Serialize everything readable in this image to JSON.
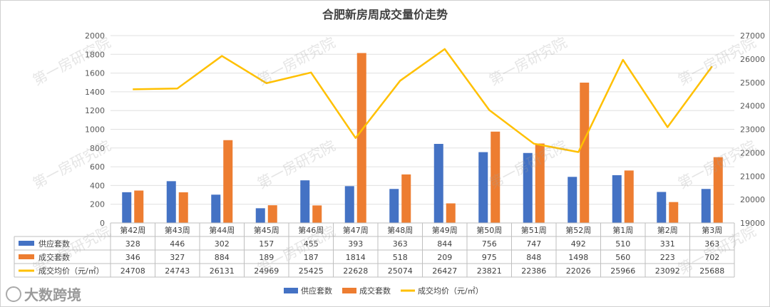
{
  "chart_data": {
    "type": "bar",
    "title": "合肥新房周成交量价走势",
    "categories": [
      "第42周",
      "第43周",
      "第44周",
      "第45周",
      "第46周",
      "第47周",
      "第48周",
      "第49周",
      "第50周",
      "第51周",
      "第52周",
      "第1周",
      "第2周",
      "第3周"
    ],
    "series": [
      {
        "name": "供应套数",
        "type": "bar",
        "axis": "left",
        "color": "#4472c4",
        "values": [
          328,
          446,
          302,
          157,
          455,
          393,
          363,
          844,
          756,
          747,
          492,
          510,
          331,
          363
        ]
      },
      {
        "name": "成交套数",
        "type": "bar",
        "axis": "left",
        "color": "#ed7d31",
        "values": [
          346,
          327,
          884,
          189,
          187,
          1814,
          518,
          209,
          975,
          848,
          1498,
          560,
          223,
          702
        ]
      },
      {
        "name": "成交均价（元/㎡）",
        "type": "line",
        "axis": "right",
        "color": "#ffc000",
        "values": [
          24708,
          24743,
          26131,
          24969,
          25425,
          22628,
          25074,
          26427,
          23821,
          22386,
          22026,
          25966,
          23092,
          25688
        ]
      }
    ],
    "ylim_left": [
      0,
      2000
    ],
    "yticks_left": [
      "0",
      "200",
      "400",
      "600",
      "800",
      "1000",
      "1200",
      "1400",
      "1600",
      "1800",
      "2000"
    ],
    "ylim_right": [
      19000,
      27000
    ],
    "yticks_right": [
      "19000",
      "20000",
      "21000",
      "22000",
      "23000",
      "24000",
      "25000",
      "26000",
      "27000"
    ],
    "grid": true,
    "legend": "bottom",
    "data_table": true
  },
  "watermark_text": "第一房研究院",
  "brand": "大数跨境"
}
